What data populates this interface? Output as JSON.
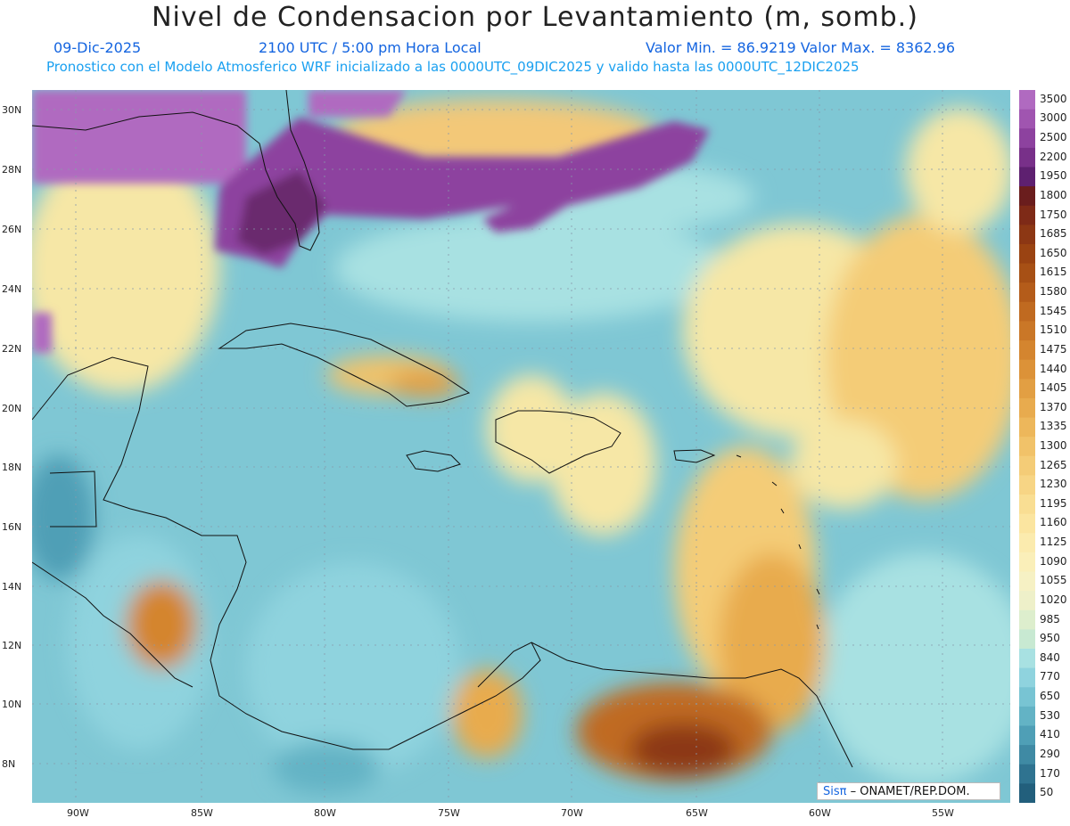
{
  "title": "Nivel de Condensacion por Levantamiento (m, somb.)",
  "date": "09-Dic-2025",
  "time": "2100 UTC / 5:00 pm Hora Local",
  "value_range": "Valor Min. = 86.9219   Valor Max. = 8362.96",
  "forecast_note": "Pronostico con el Modelo Atmosferico WRF inicializado a las 0000UTC_09DIC2025 y valido hasta las  0000UTC_12DIC2025",
  "lat_labels": [
    "30N",
    "28N",
    "26N",
    "24N",
    "22N",
    "20N",
    "18N",
    "16N",
    "14N",
    "12N",
    "10N",
    "8N"
  ],
  "lon_labels": [
    "90W",
    "85W",
    "80W",
    "75W",
    "70W",
    "65W",
    "60W",
    "55W"
  ],
  "legend": {
    "levels": [
      "3500",
      "3000",
      "2500",
      "2200",
      "1950",
      "1800",
      "1750",
      "1685",
      "1650",
      "1615",
      "1580",
      "1545",
      "1510",
      "1475",
      "1440",
      "1405",
      "1370",
      "1335",
      "1300",
      "1265",
      "1230",
      "1195",
      "1160",
      "1125",
      "1090",
      "1055",
      "1020",
      "985",
      "950",
      "840",
      "770",
      "650",
      "530",
      "410",
      "290",
      "170",
      "50"
    ],
    "colors": [
      "#b06ac0",
      "#a055b0",
      "#8d429f",
      "#783089",
      "#5e2070",
      "#6a1d1d",
      "#7e2a17",
      "#8c3714",
      "#9a4312",
      "#a75015",
      "#b45c1a",
      "#c06a20",
      "#ca7727",
      "#d4852f",
      "#dc9238",
      "#e29f43",
      "#e8ab4e",
      "#edb75b",
      "#f1c269",
      "#f4cc77",
      "#f7d585",
      "#f9de93",
      "#fbe5a0",
      "#fbebae",
      "#faefb9",
      "#f6f1c4",
      "#eef0c9",
      "#ddeecd",
      "#c8e9d2",
      "#a8e1e2",
      "#8fd3de",
      "#78c4d3",
      "#63b3c5",
      "#4f9fb6",
      "#3f8aa4",
      "#2f7390",
      "#225f7c"
    ]
  },
  "credit": {
    "brand": "Sisπ",
    "text": " – ONAMET/REP.DOM."
  }
}
